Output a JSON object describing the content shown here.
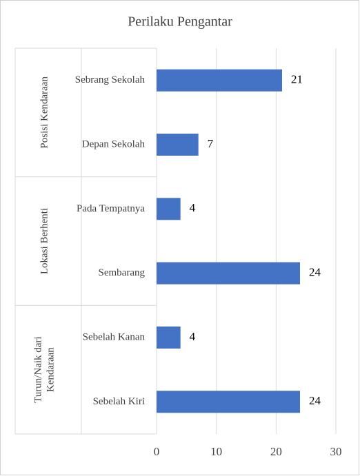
{
  "chart_data": {
    "type": "bar",
    "orientation": "horizontal",
    "title": "Perilaku Pengantar",
    "groups": [
      {
        "name": [
          "Posisi Kendaraan"
        ],
        "categories": [
          "Sebrang Sekolah",
          "Depan Sekolah"
        ],
        "values": [
          21,
          7
        ]
      },
      {
        "name": [
          "Lokasi Berhenti"
        ],
        "categories": [
          "Pada Tempatnya",
          "Sembarang"
        ],
        "values": [
          4,
          24
        ]
      },
      {
        "name": [
          "Turun/Naik dari",
          "Kendaraan"
        ],
        "categories": [
          "Sebelah Kanan",
          "Sebelah Kiri"
        ],
        "values": [
          4,
          24
        ]
      }
    ],
    "color": "#4472c4",
    "xlim": [
      0,
      30
    ],
    "xticks": [
      0,
      10,
      20,
      30
    ],
    "grid": true
  }
}
